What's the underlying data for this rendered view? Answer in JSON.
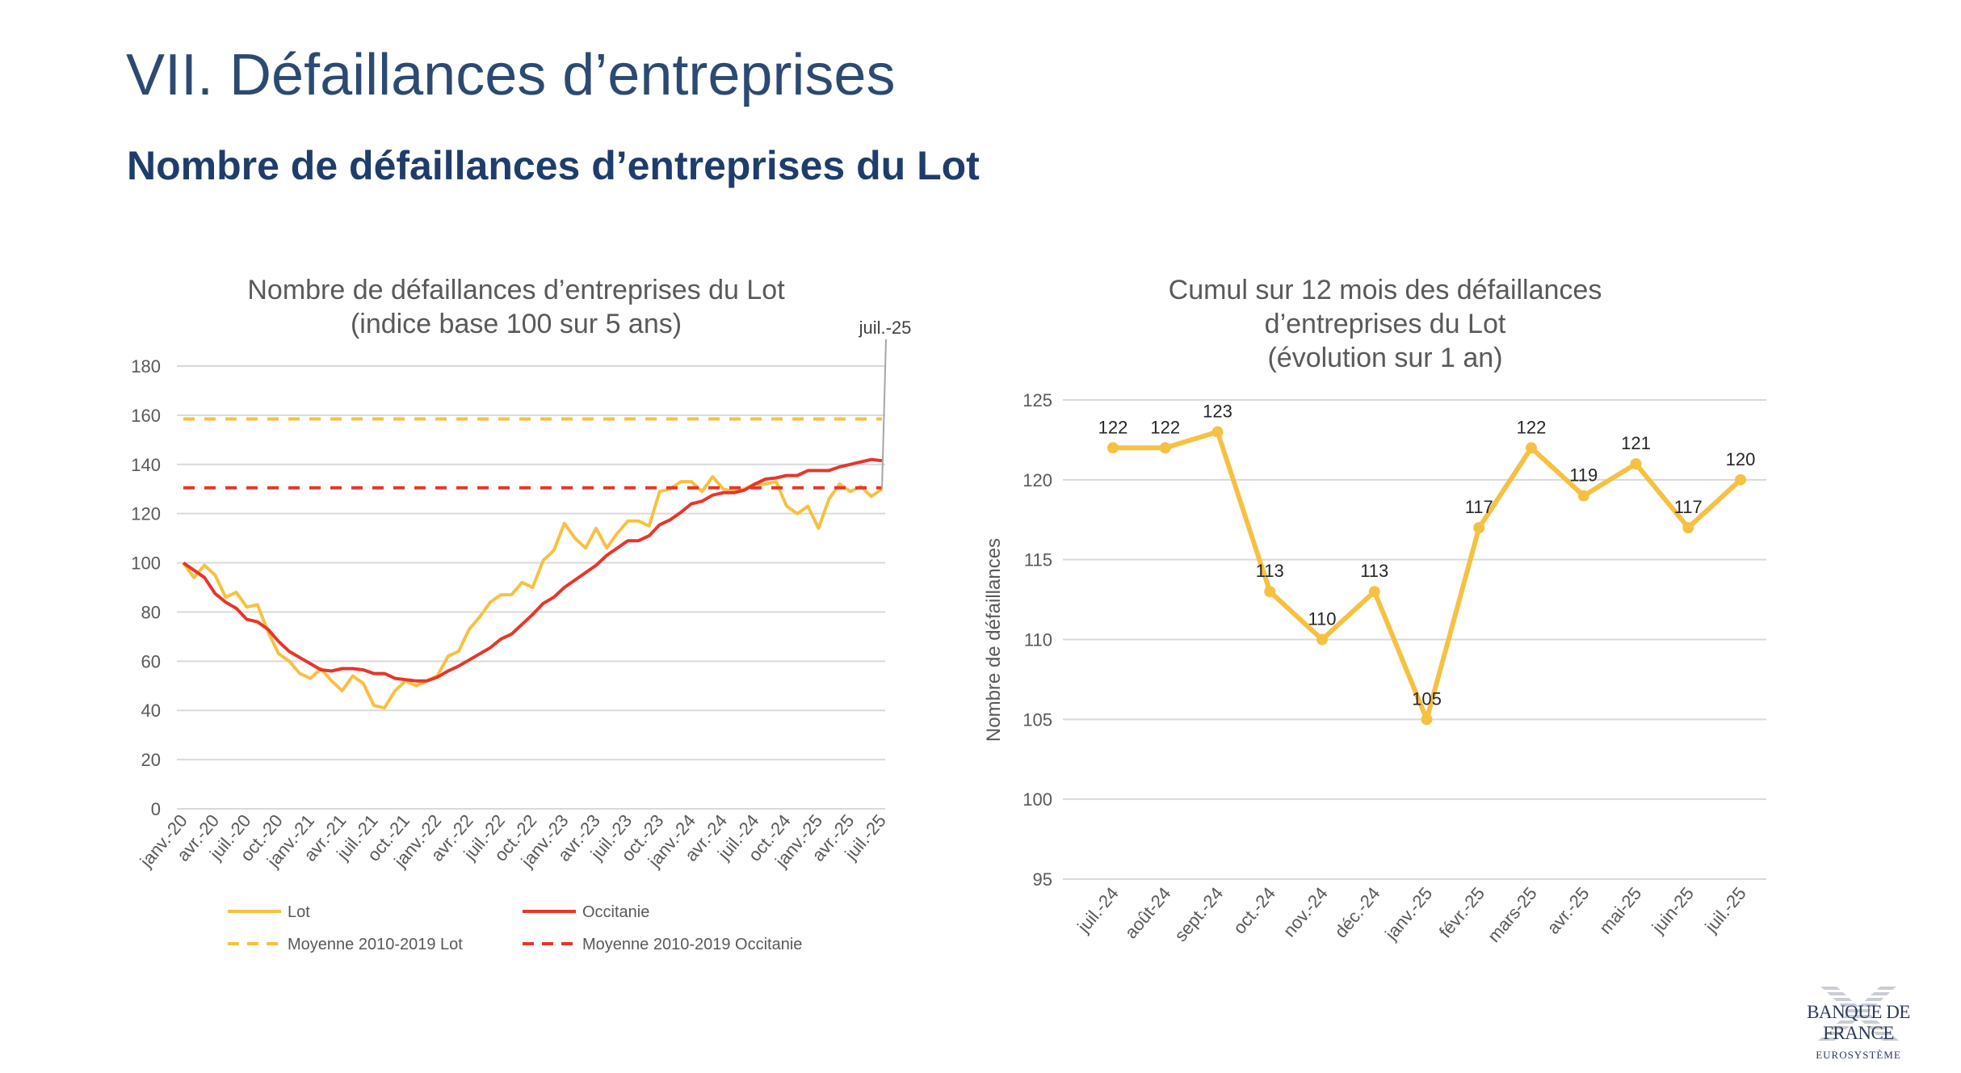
{
  "page": {
    "title": "VII. Défaillances d’entreprises",
    "subtitle": "Nombre de défaillances d’entreprises du Lot"
  },
  "logo": {
    "name": "BANQUE DE FRANCE",
    "tagline": "EUROSYSTÈME"
  },
  "colors": {
    "lot": "#F6C142",
    "occitanie": "#E8352A",
    "grid": "#D9D9D9",
    "text": "#595959",
    "title": "#2B4A73"
  },
  "chart_data": [
    {
      "type": "line",
      "title": [
        "Nombre de défaillances d’entreprises du Lot",
        "(indice base 100 sur 5 ans)"
      ],
      "callout": "juil.-25",
      "xlabel": "",
      "ylabel": "",
      "ylim": [
        0,
        180
      ],
      "yticks": [
        0,
        20,
        40,
        60,
        80,
        100,
        120,
        140,
        160,
        180
      ],
      "grid": true,
      "legend": "bottom",
      "x_start": "janv.-20",
      "x_end": "juil.-25",
      "xtick_labels": [
        "janv.-20",
        "avr.-20",
        "juil.-20",
        "oct.-20",
        "janv.-21",
        "avr.-21",
        "juil.-21",
        "oct.-21",
        "janv.-22",
        "avr.-22",
        "juil.-22",
        "oct.-22",
        "janv.-23",
        "avr.-23",
        "juil.-23",
        "oct.-23",
        "janv.-24",
        "avr.-24",
        "juil.-24",
        "oct.-24",
        "janv.-25",
        "avr.-25",
        "juil.-25"
      ],
      "series": [
        {
          "name": "Lot",
          "style": "solid",
          "color": "#F6C142",
          "values": [
            100,
            94,
            99,
            95,
            86,
            88,
            82,
            83,
            72,
            63,
            60,
            55,
            53,
            57,
            52,
            48,
            54,
            51,
            42,
            41,
            48,
            52,
            50,
            52,
            54,
            62,
            64,
            73,
            78,
            84,
            87,
            87,
            92,
            90,
            101,
            105,
            116,
            110,
            106,
            114,
            106,
            112,
            117,
            117,
            115,
            129,
            130,
            133,
            133,
            129,
            135,
            130,
            129,
            130,
            132,
            132,
            133,
            123,
            120,
            123,
            114,
            126,
            132,
            129,
            131,
            127,
            130
          ]
        },
        {
          "name": "Occitanie",
          "style": "solid",
          "color": "#E8352A",
          "values": [
            100,
            97,
            94,
            87.5,
            84,
            81.5,
            77,
            76,
            73,
            68,
            64,
            61.5,
            59,
            56.5,
            56,
            57,
            57,
            56.5,
            55,
            55,
            53,
            52.5,
            52,
            52,
            53.5,
            56,
            58,
            60.5,
            63,
            65.5,
            69,
            71,
            75,
            79,
            83.5,
            86,
            90,
            93,
            96,
            99,
            103,
            106,
            109,
            109,
            111,
            115.5,
            117.5,
            120.5,
            124,
            125,
            127.5,
            128.5,
            128.5,
            129.5,
            132,
            134,
            134.5,
            135.5,
            135.5,
            137.5,
            137.5,
            137.5,
            139,
            140,
            141,
            142,
            141.5
          ]
        },
        {
          "name": "Moyenne 2010-2019 Lot",
          "style": "dashed",
          "color": "#F6C142",
          "constant": 158.5
        },
        {
          "name": "Moyenne 2010-2019 Occitanie",
          "style": "dashed",
          "color": "#E8352A",
          "constant": 130.5
        }
      ]
    },
    {
      "type": "line",
      "title": [
        "Cumul sur 12 mois des défaillances",
        "d’entreprises du Lot",
        "(évolution sur 1 an)"
      ],
      "xlabel": "",
      "ylabel": "Nombre de défaillances",
      "ylim": [
        95,
        125
      ],
      "yticks": [
        95,
        100,
        105,
        110,
        115,
        120,
        125
      ],
      "grid": true,
      "legend": "none",
      "categories": [
        "juil.-24",
        "août-24",
        "sept.-24",
        "oct.-24",
        "nov.-24",
        "déc.-24",
        "janv.-25",
        "févr.-25",
        "mars-25",
        "avr.-25",
        "mai-25",
        "juin-25",
        "juil.-25"
      ],
      "series": [
        {
          "color": "#F6C142",
          "markers": true,
          "data_labels": true,
          "values": [
            122,
            122,
            123,
            113,
            110,
            113,
            105,
            117,
            122,
            119,
            121,
            117,
            120
          ]
        }
      ]
    }
  ]
}
